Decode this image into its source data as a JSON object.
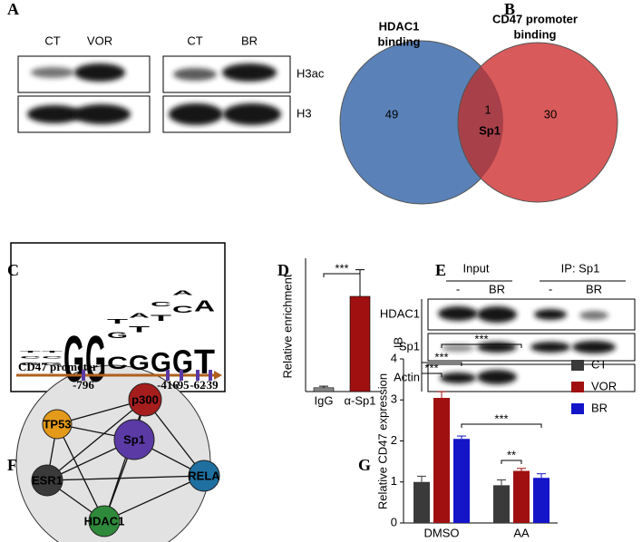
{
  "letters": [
    "A",
    "B",
    "C",
    "D",
    "E",
    "F",
    "G"
  ],
  "blot_a": {
    "lanes": [
      "CT",
      "VOR",
      "CT",
      "BR"
    ],
    "rows": [
      "H3ac",
      "H3"
    ]
  },
  "venn": {
    "left": [
      "HDAC1",
      "binding"
    ],
    "right": [
      "CD47 promoter",
      "binding"
    ],
    "left_only": "49",
    "both": "1",
    "right_only": "30",
    "shared": "Sp1",
    "left_color": "#5a82b8",
    "right_color": "#d85a5a",
    "both_color": "#a8404a"
  },
  "logo": {
    "ylim": [
      0,
      2
    ],
    "letter_colors": {
      "G": "#f0a830",
      "C": "#2f5fb8",
      "T": "#d0301e",
      "A": "#2e9a3a"
    },
    "columns": [
      {
        "letters": [
          "G",
          "C",
          "T"
        ],
        "heights": [
          0.12,
          0.1,
          0.08
        ]
      },
      {
        "letters": [
          "G",
          "C",
          "T"
        ],
        "heights": [
          0.12,
          0.1,
          0.08
        ]
      },
      {
        "letters": [
          "G"
        ],
        "heights": [
          1.9
        ]
      },
      {
        "letters": [
          "G"
        ],
        "heights": [
          1.9
        ]
      },
      {
        "letters": [
          "C",
          "G",
          "T"
        ],
        "heights": [
          0.5,
          0.25,
          0.2
        ]
      },
      {
        "letters": [
          "G",
          "T",
          "A"
        ],
        "heights": [
          0.6,
          0.25,
          0.2
        ]
      },
      {
        "letters": [
          "G",
          "T",
          "C"
        ],
        "heights": [
          0.8,
          0.25,
          0.2
        ]
      },
      {
        "letters": [
          "G",
          "C",
          "A"
        ],
        "heights": [
          0.95,
          0.3,
          0.2
        ]
      },
      {
        "letters": [
          "T",
          "A"
        ],
        "heights": [
          1.0,
          0.45
        ]
      }
    ],
    "promoter": "CD47 promoter",
    "sites": [
      "-796",
      "-416",
      "-95",
      "-62",
      "-39"
    ]
  },
  "blot_e": {
    "groups": [
      "Input",
      "IP: Sp1"
    ],
    "lanes": [
      "-",
      "BR",
      "-",
      "BR"
    ],
    "ib": "IB",
    "rows": [
      "HDAC1",
      "Sp1",
      "Actin"
    ]
  },
  "network": {
    "nodes": [
      {
        "label": "p300",
        "color": "#a51d1d"
      },
      {
        "label": "TP53",
        "color": "#e39a1a"
      },
      {
        "label": "Sp1",
        "color": "#5b3aa6"
      },
      {
        "label": "ESR1",
        "color": "#3a3a3a"
      },
      {
        "label": "RELA",
        "color": "#1f6fa0"
      },
      {
        "label": "HDAC1",
        "color": "#2e8a3a"
      }
    ]
  },
  "chart_data": [
    {
      "type": "bar",
      "y_label": "Relative enrichment",
      "categories": [
        "IgG",
        "α-Sp1"
      ],
      "values": [
        1,
        25
      ],
      "errors": [
        0.4,
        7
      ],
      "colors": [
        "#888888",
        "#a01010"
      ],
      "ylim": [
        0,
        35
      ],
      "annotations": [
        "***"
      ]
    },
    {
      "type": "grouped_bar",
      "y_label": "Relative CD47 expression",
      "categories": [
        "DMSO",
        "AA"
      ],
      "series": [
        {
          "name": "CT",
          "color": "#3a3a3a",
          "values": [
            1.0,
            0.92
          ],
          "errors": [
            0.14,
            0.13
          ]
        },
        {
          "name": "VOR",
          "color": "#a01010",
          "values": [
            3.05,
            1.27
          ],
          "errors": [
            0.15,
            0.06
          ]
        },
        {
          "name": "BR",
          "color": "#1414c8",
          "values": [
            2.05,
            1.1
          ],
          "errors": [
            0.07,
            0.1
          ]
        }
      ],
      "ylim": [
        0,
        4
      ],
      "yticks": [
        0,
        1,
        2,
        3,
        4
      ],
      "annotations": [
        "***",
        "***",
        "***",
        "***",
        "**"
      ]
    }
  ]
}
